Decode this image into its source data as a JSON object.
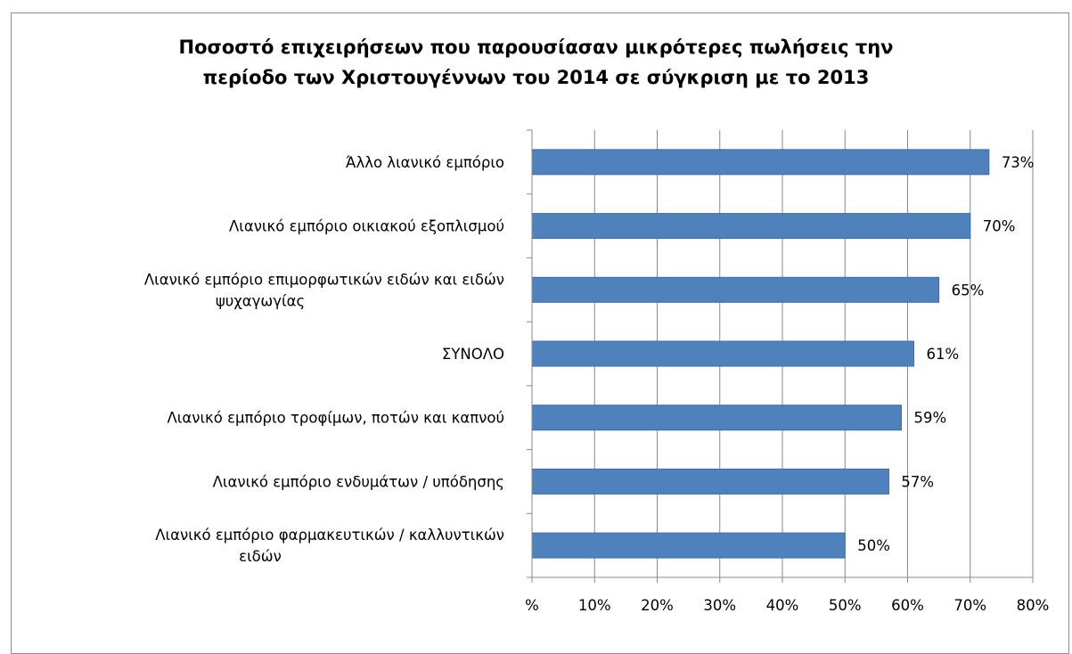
{
  "chart_data": {
    "type": "bar",
    "orientation": "horizontal",
    "title_lines": [
      "Ποσοστό επιχειρήσεων που παρουσίασαν μικρότερες πωλήσεις την",
      "περίοδο των Χριστουγέννων του 2014 σε σύγκριση με το 2013"
    ],
    "categories": [
      [
        "Άλλο λιανικό εμπόριο"
      ],
      [
        "Λιανικό εμπόριο οικιακού εξοπλισμού"
      ],
      [
        "Λιανικό εμπόριο επιμορφωτικών ειδών και ειδών",
        "ψυχαγωγίας"
      ],
      [
        "ΣΥΝΟΛΟ"
      ],
      [
        "Λιανικό εμπόριο τροφίμων, ποτών και καπνού"
      ],
      [
        "Λιανικό εμπόριο ενδυμάτων  / υπόδησης"
      ],
      [
        "Λιανικό εμπόριο φαρμακευτικών / καλλυντικών",
        "ειδών"
      ]
    ],
    "values": [
      73,
      70,
      65,
      61,
      59,
      57,
      50
    ],
    "data_labels": [
      "73%",
      "70%",
      "65%",
      "61%",
      "59%",
      "57%",
      "50%"
    ],
    "x_ticks": [
      "%",
      "10%",
      "20%",
      "30%",
      "40%",
      "50%",
      "60%",
      "70%",
      "80%"
    ],
    "xlim": [
      0,
      80
    ],
    "grid": "vertical",
    "legend": "none",
    "colors": {
      "bar": "#4f81bd",
      "bar_edge": "#3a6ea5",
      "grid": "#888888",
      "axis": "#888888"
    }
  }
}
